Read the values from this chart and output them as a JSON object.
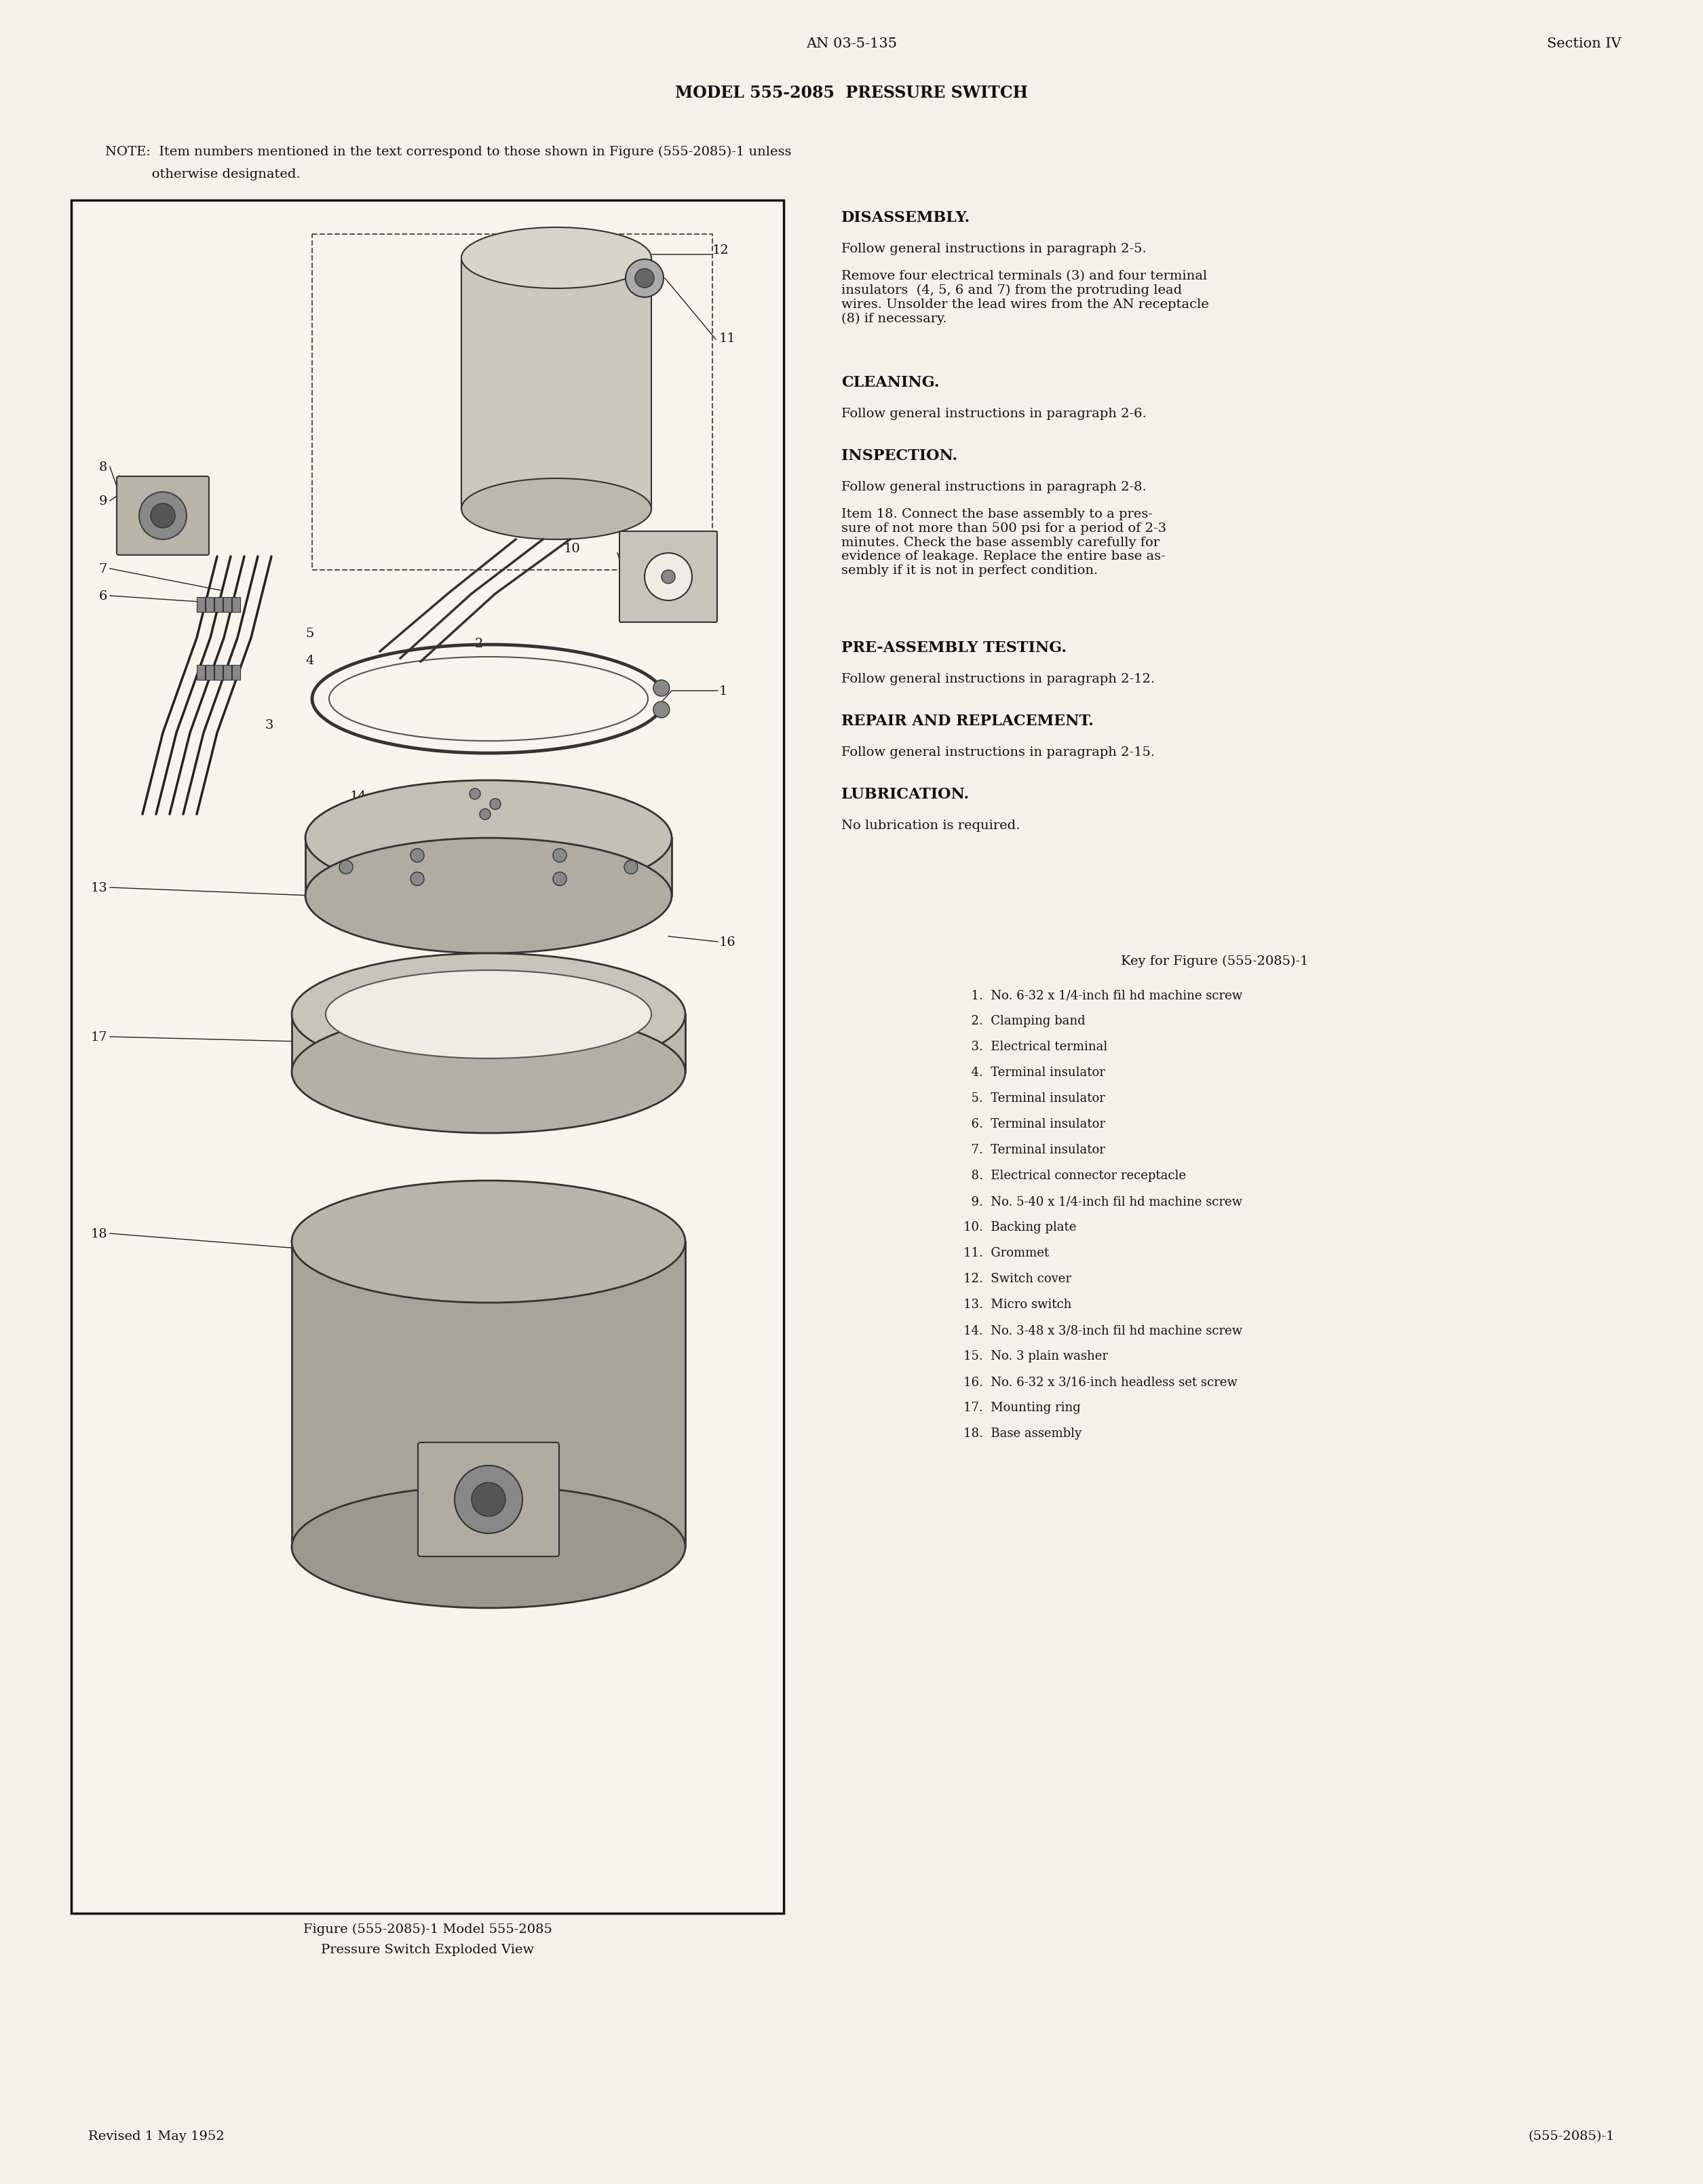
{
  "page_bg": "#f5f0e8",
  "header_left": "AN 03-5-135",
  "header_right": "Section IV",
  "page_title": "MODEL 555-2085  PRESSURE SWITCH",
  "note_line1": "NOTE:  Item numbers mentioned in the text correspond to those shown in Figure (555-2085)-1 unless",
  "note_line2": "           otherwise designated.",
  "sections": [
    {
      "heading": "DISASSEMBLY.",
      "paragraphs": [
        "Follow general instructions in paragraph 2-5.",
        "Remove four electrical terminals (3) and four terminal\ninsulators  (4, 5, 6 and 7) from the protruding lead\nwires. Unsolder the lead wires from the AN receptacle\n(8) if necessary."
      ]
    },
    {
      "heading": "CLEANING.",
      "paragraphs": [
        "Follow general instructions in paragraph 2-6."
      ]
    },
    {
      "heading": "INSPECTION.",
      "paragraphs": [
        "Follow general instructions in paragraph 2-8.",
        "Item 18. Connect the base assembly to a pres-\nsure of not more than 500 psi for a period of 2-3\nminutes. Check the base assembly carefully for\nevidence of leakage. Replace the entire base as-\nsembly if it is not in perfect condition."
      ]
    },
    {
      "heading": "PRE-ASSEMBLY TESTING.",
      "paragraphs": [
        "Follow general instructions in paragraph 2-12."
      ]
    },
    {
      "heading": "REPAIR AND REPLACEMENT.",
      "paragraphs": [
        "Follow general instructions in paragraph 2-15."
      ]
    },
    {
      "heading": "LUBRICATION.",
      "paragraphs": [
        "No lubrication is required."
      ]
    }
  ],
  "key_title": "Key for Figure (555-2085)-1",
  "key_items": [
    "  1.  No. 6-32 x 1/4-inch fil hd machine screw",
    "  2.  Clamping band",
    "  3.  Electrical terminal",
    "  4.  Terminal insulator",
    "  5.  Terminal insulator",
    "  6.  Terminal insulator",
    "  7.  Terminal insulator",
    "  8.  Electrical connector receptacle",
    "  9.  No. 5-40 x 1/4-inch fil hd machine screw",
    "10.  Backing plate",
    "11.  Grommet",
    "12.  Switch cover",
    "13.  Micro switch",
    "14.  No. 3-48 x 3/8-inch fil hd machine screw",
    "15.  No. 3 plain washer",
    "16.  No. 6-32 x 3/16-inch headless set screw",
    "17.  Mounting ring",
    "18.  Base assembly"
  ],
  "figure_caption_line1": "Figure (555-2085)-1 Model 555-2085",
  "figure_caption_line2": "Pressure Switch Exploded View",
  "footer_left": "Revised 1 May 1952",
  "footer_right": "(555-2085)-1"
}
